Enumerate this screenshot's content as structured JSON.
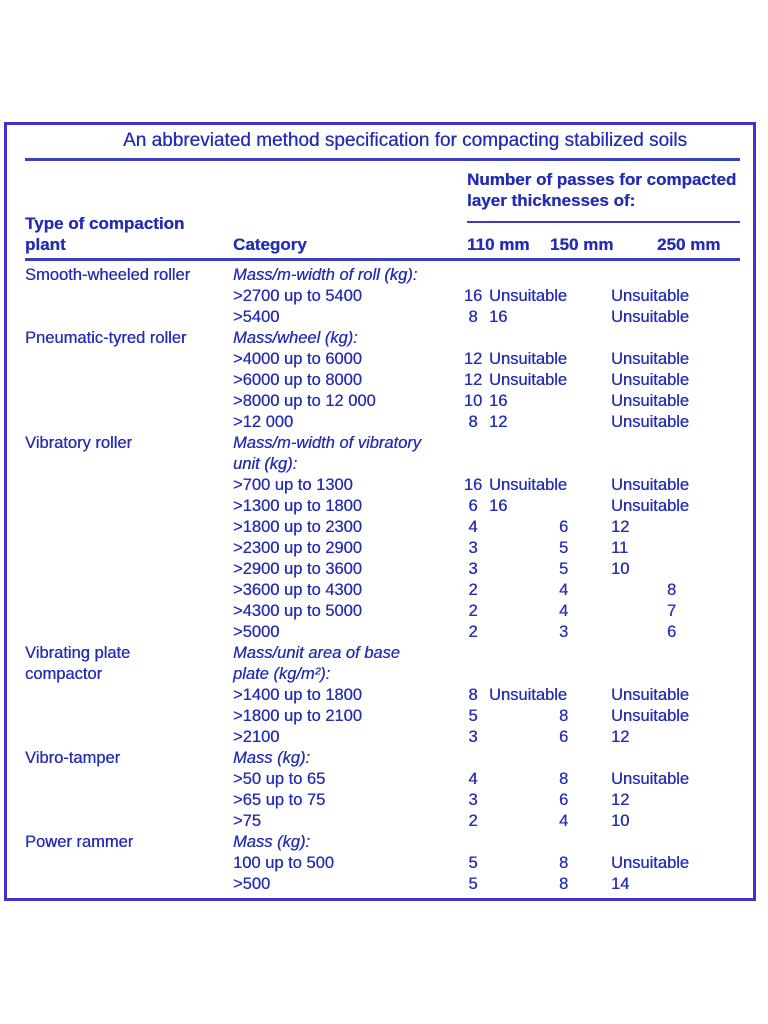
{
  "page": {
    "title": "An abbreviated method specification for compacting stabilized soils"
  },
  "colors": {
    "text_blue": "#232cb6",
    "border_purple": "#4a2ed0",
    "rule_blue": "#3a3fc2",
    "background": "#ffffff"
  },
  "table": {
    "headers": {
      "plant": "Type of compaction plant",
      "category": "Category",
      "passes_group": "Number of passes for compacted layer thicknesses of:",
      "col110": "110 mm",
      "col150": "150 mm",
      "col250": "250 mm"
    },
    "rows": [
      {
        "plant": "Smooth-wheeled roller",
        "category": "Mass/m-width of roll (kg):",
        "italic": true,
        "p110": "",
        "p150": "",
        "p250": ""
      },
      {
        "plant": "",
        "category": ">2700 up to 5400",
        "italic": false,
        "p110": "16",
        "p150": "Unsuitable",
        "p250": "Unsuitable"
      },
      {
        "plant": "",
        "category": ">5400",
        "italic": false,
        "p110": "8",
        "p150": "16",
        "p250": "Unsuitable"
      },
      {
        "plant": "Pneumatic-tyred roller",
        "category": "Mass/wheel (kg):",
        "italic": true,
        "p110": "",
        "p150": "",
        "p250": ""
      },
      {
        "plant": "",
        "category": ">4000 up to 6000",
        "italic": false,
        "p110": "12",
        "p150": "Unsuitable",
        "p250": "Unsuitable"
      },
      {
        "plant": "",
        "category": ">6000 up to 8000",
        "italic": false,
        "p110": "12",
        "p150": "Unsuitable",
        "p250": "Unsuitable"
      },
      {
        "plant": "",
        "category": ">8000 up to 12 000",
        "italic": false,
        "p110": "10",
        "p150": "16",
        "p250": "Unsuitable"
      },
      {
        "plant": "",
        "category": ">12 000",
        "italic": false,
        "p110": "8",
        "p150": "12",
        "p250": "Unsuitable"
      },
      {
        "plant": "Vibratory roller",
        "category": "Mass/m-width of vibratory",
        "italic": true,
        "p110": "",
        "p150": "",
        "p250": ""
      },
      {
        "plant": "",
        "category": "unit (kg):",
        "italic": true,
        "p110": "",
        "p150": "",
        "p250": ""
      },
      {
        "plant": "",
        "category": ">700 up to 1300",
        "italic": false,
        "p110": "16",
        "p150": "Unsuitable",
        "p250": "Unsuitable"
      },
      {
        "plant": "",
        "category": ">1300 up to 1800",
        "italic": false,
        "p110": "6",
        "p150": "16",
        "p250": "Unsuitable"
      },
      {
        "plant": "",
        "category": ">1800 up to 2300",
        "italic": false,
        "p110": "4",
        "p150": "6",
        "p250": "12"
      },
      {
        "plant": "",
        "category": ">2300 up to 2900",
        "italic": false,
        "p110": "3",
        "p150": "5",
        "p250": "11"
      },
      {
        "plant": "",
        "category": ">2900 up to 3600",
        "italic": false,
        "p110": "3",
        "p150": "5",
        "p250": "10"
      },
      {
        "plant": "",
        "category": ">3600 up to 4300",
        "italic": false,
        "p110": "2",
        "p150": "4",
        "p250": "8"
      },
      {
        "plant": "",
        "category": ">4300 up to 5000",
        "italic": false,
        "p110": "2",
        "p150": "4",
        "p250": "7"
      },
      {
        "plant": "",
        "category": ">5000",
        "italic": false,
        "p110": "2",
        "p150": "3",
        "p250": "6"
      },
      {
        "plant": "Vibrating plate",
        "category": "Mass/unit area of base",
        "italic": true,
        "p110": "",
        "p150": "",
        "p250": ""
      },
      {
        "plant": "compactor",
        "category": "plate (kg/m²):",
        "italic": true,
        "p110": "",
        "p150": "",
        "p250": ""
      },
      {
        "plant": "",
        "category": ">1400 up to 1800",
        "italic": false,
        "p110": "8",
        "p150": "Unsuitable",
        "p250": "Unsuitable"
      },
      {
        "plant": "",
        "category": ">1800 up to 2100",
        "italic": false,
        "p110": "5",
        "p150": "8",
        "p250": "Unsuitable"
      },
      {
        "plant": "",
        "category": ">2100",
        "italic": false,
        "p110": "3",
        "p150": "6",
        "p250": "12"
      },
      {
        "plant": "Vibro-tamper",
        "category": "Mass (kg):",
        "italic": true,
        "p110": "",
        "p150": "",
        "p250": ""
      },
      {
        "plant": "",
        "category": ">50 up to 65",
        "italic": false,
        "p110": "4",
        "p150": "8",
        "p250": "Unsuitable"
      },
      {
        "plant": "",
        "category": ">65 up to 75",
        "italic": false,
        "p110": "3",
        "p150": "6",
        "p250": "12"
      },
      {
        "plant": "",
        "category": ">75",
        "italic": false,
        "p110": "2",
        "p150": "4",
        "p250": "10"
      },
      {
        "plant": "Power rammer",
        "category": "Mass (kg):",
        "italic": true,
        "p110": "",
        "p150": "",
        "p250": ""
      },
      {
        "plant": "",
        "category": "100 up to 500",
        "italic": false,
        "p110": "5",
        "p150": "8",
        "p250": "Unsuitable"
      },
      {
        "plant": "",
        "category": ">500",
        "italic": false,
        "p110": "5",
        "p150": "8",
        "p250": "14"
      }
    ]
  }
}
